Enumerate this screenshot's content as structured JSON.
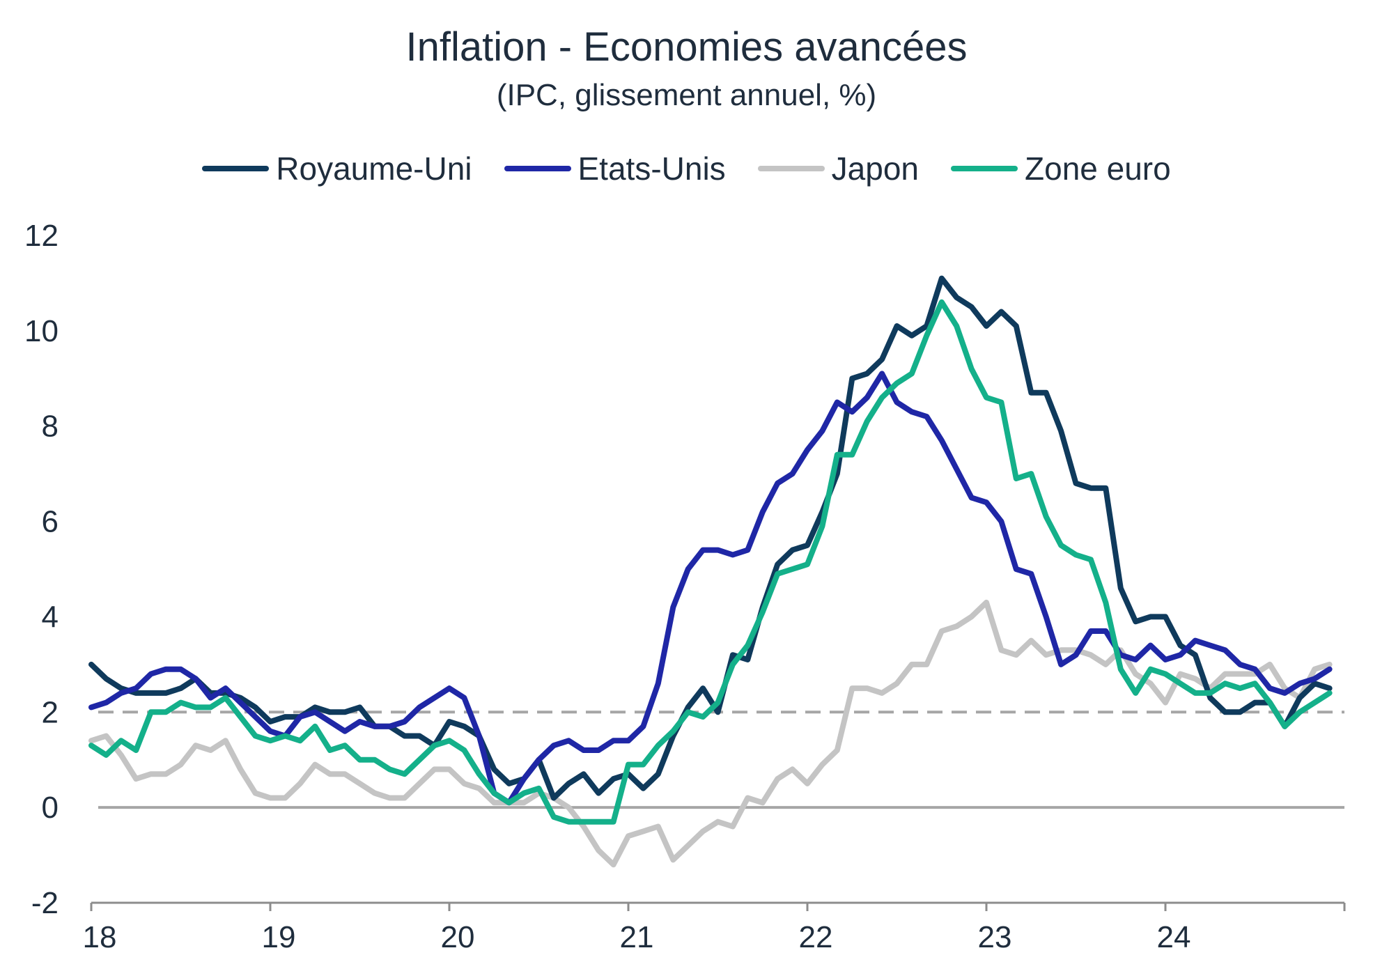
{
  "chart_data": {
    "type": "line",
    "title": "Inflation - Economies avancées",
    "subtitle": "(IPC, glissement annuel, %)",
    "ylim": [
      -2,
      12
    ],
    "yticks": [
      "12",
      "10",
      "8",
      "6",
      "4",
      "2",
      "0",
      "-2"
    ],
    "ytick_values": [
      12,
      10,
      8,
      6,
      4,
      2,
      0,
      -2
    ],
    "xlim": [
      2018.0,
      2025.0
    ],
    "xticks": [
      "18",
      "19",
      "20",
      "21",
      "22",
      "23",
      "24"
    ],
    "xtick_values": [
      2018,
      2019,
      2020,
      2021,
      2022,
      2023,
      2024
    ],
    "legend_position": "top",
    "grid": false,
    "reference_lines": [
      {
        "value": 2,
        "style": "dashed",
        "color": "#a6a6a6"
      },
      {
        "value": 0,
        "style": "solid",
        "color": "#a6a6a6"
      }
    ],
    "x_start": "2018-01",
    "series": [
      {
        "name": "Royaume-Uni",
        "color": "#0f3a5c",
        "values": [
          3.0,
          2.7,
          2.5,
          2.4,
          2.4,
          2.4,
          2.5,
          2.7,
          2.4,
          2.4,
          2.3,
          2.1,
          1.8,
          1.9,
          1.9,
          2.1,
          2.0,
          2.0,
          2.1,
          1.7,
          1.7,
          1.5,
          1.5,
          1.3,
          1.8,
          1.7,
          1.5,
          0.8,
          0.5,
          0.6,
          1.0,
          0.2,
          0.5,
          0.7,
          0.3,
          0.6,
          0.7,
          0.4,
          0.7,
          1.5,
          2.1,
          2.5,
          2.0,
          3.2,
          3.1,
          4.2,
          5.1,
          5.4,
          5.5,
          6.2,
          7.0,
          9.0,
          9.1,
          9.4,
          10.1,
          9.9,
          10.1,
          11.1,
          10.7,
          10.5,
          10.1,
          10.4,
          10.1,
          8.7,
          8.7,
          7.9,
          6.8,
          6.7,
          6.7,
          4.6,
          3.9,
          4.0,
          4.0,
          3.4,
          3.2,
          2.3,
          2.0,
          2.0,
          2.2,
          2.2,
          1.7,
          2.3,
          2.6,
          2.5
        ]
      },
      {
        "name": "Etats-Unis",
        "color": "#1f27a6",
        "values": [
          2.1,
          2.2,
          2.4,
          2.5,
          2.8,
          2.9,
          2.9,
          2.7,
          2.3,
          2.5,
          2.2,
          1.9,
          1.6,
          1.5,
          1.9,
          2.0,
          1.8,
          1.6,
          1.8,
          1.7,
          1.7,
          1.8,
          2.1,
          2.3,
          2.5,
          2.3,
          1.5,
          0.3,
          0.1,
          0.6,
          1.0,
          1.3,
          1.4,
          1.2,
          1.2,
          1.4,
          1.4,
          1.7,
          2.6,
          4.2,
          5.0,
          5.4,
          5.4,
          5.3,
          5.4,
          6.2,
          6.8,
          7.0,
          7.5,
          7.9,
          8.5,
          8.3,
          8.6,
          9.1,
          8.5,
          8.3,
          8.2,
          7.7,
          7.1,
          6.5,
          6.4,
          6.0,
          5.0,
          4.9,
          4.0,
          3.0,
          3.2,
          3.7,
          3.7,
          3.2,
          3.1,
          3.4,
          3.1,
          3.2,
          3.5,
          3.4,
          3.3,
          3.0,
          2.9,
          2.5,
          2.4,
          2.6,
          2.7,
          2.9
        ]
      },
      {
        "name": "Japon",
        "color": "#c4c4c4",
        "values": [
          1.4,
          1.5,
          1.1,
          0.6,
          0.7,
          0.7,
          0.9,
          1.3,
          1.2,
          1.4,
          0.8,
          0.3,
          0.2,
          0.2,
          0.5,
          0.9,
          0.7,
          0.7,
          0.5,
          0.3,
          0.2,
          0.2,
          0.5,
          0.8,
          0.8,
          0.5,
          0.4,
          0.1,
          0.1,
          0.1,
          0.3,
          0.2,
          0.0,
          -0.4,
          -0.9,
          -1.2,
          -0.6,
          -0.5,
          -0.4,
          -1.1,
          -0.8,
          -0.5,
          -0.3,
          -0.4,
          0.2,
          0.1,
          0.6,
          0.8,
          0.5,
          0.9,
          1.2,
          2.5,
          2.5,
          2.4,
          2.6,
          3.0,
          3.0,
          3.7,
          3.8,
          4.0,
          4.3,
          3.3,
          3.2,
          3.5,
          3.2,
          3.3,
          3.3,
          3.2,
          3.0,
          3.3,
          2.8,
          2.6,
          2.2,
          2.8,
          2.7,
          2.5,
          2.8,
          2.8,
          2.8,
          3.0,
          2.5,
          2.3,
          2.9,
          3.0
        ]
      },
      {
        "name": "Zone euro",
        "color": "#14b08a",
        "values": [
          1.3,
          1.1,
          1.4,
          1.2,
          2.0,
          2.0,
          2.2,
          2.1,
          2.1,
          2.3,
          1.9,
          1.5,
          1.4,
          1.5,
          1.4,
          1.7,
          1.2,
          1.3,
          1.0,
          1.0,
          0.8,
          0.7,
          1.0,
          1.3,
          1.4,
          1.2,
          0.7,
          0.3,
          0.1,
          0.3,
          0.4,
          -0.2,
          -0.3,
          -0.3,
          -0.3,
          -0.3,
          0.9,
          0.9,
          1.3,
          1.6,
          2.0,
          1.9,
          2.2,
          3.0,
          3.4,
          4.1,
          4.9,
          5.0,
          5.1,
          5.9,
          7.4,
          7.4,
          8.1,
          8.6,
          8.9,
          9.1,
          9.9,
          10.6,
          10.1,
          9.2,
          8.6,
          8.5,
          6.9,
          7.0,
          6.1,
          5.5,
          5.3,
          5.2,
          4.3,
          2.9,
          2.4,
          2.9,
          2.8,
          2.6,
          2.4,
          2.4,
          2.6,
          2.5,
          2.6,
          2.2,
          1.7,
          2.0,
          2.2,
          2.4
        ]
      }
    ]
  }
}
